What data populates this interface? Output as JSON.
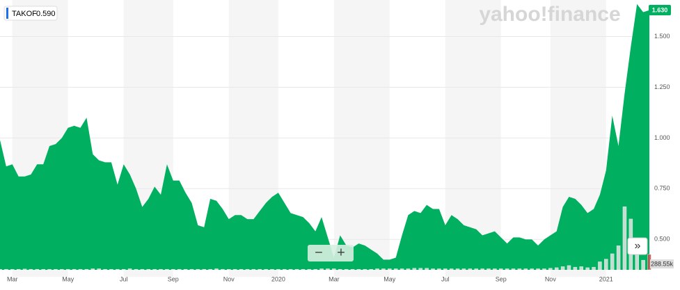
{
  "chart_data": {
    "type": "area",
    "ticker": "TAKOF",
    "quote": "0.590",
    "last_price": "1.630",
    "watermark": "yahoo!finance",
    "volume_label": "288.55k",
    "categories": [
      null,
      null,
      "Mar",
      null,
      null,
      null,
      null,
      null,
      null,
      null,
      null,
      "May",
      null,
      null,
      null,
      null,
      null,
      null,
      null,
      null,
      "Jul",
      null,
      null,
      null,
      null,
      null,
      null,
      null,
      "Sep",
      null,
      null,
      null,
      null,
      null,
      null,
      null,
      null,
      "Nov",
      null,
      null,
      null,
      null,
      null,
      null,
      null,
      "2020",
      null,
      null,
      null,
      null,
      null,
      null,
      null,
      null,
      "Mar",
      null,
      null,
      null,
      null,
      null,
      null,
      null,
      null,
      "May",
      null,
      null,
      null,
      null,
      null,
      null,
      null,
      null,
      "Jul",
      null,
      null,
      null,
      null,
      null,
      null,
      null,
      null,
      "Sep",
      null,
      null,
      null,
      null,
      null,
      null,
      null,
      "Nov",
      null,
      null,
      null,
      null,
      null,
      null,
      null,
      null,
      "2021",
      null,
      null,
      null,
      null,
      null,
      null,
      null
    ],
    "series": [
      {
        "name": "TAKOF",
        "color": "#00b060",
        "values": [
          0.99,
          0.86,
          0.87,
          0.81,
          0.81,
          0.82,
          0.87,
          0.87,
          0.96,
          0.97,
          1.0,
          1.05,
          1.06,
          1.05,
          1.1,
          0.92,
          0.89,
          0.88,
          0.88,
          0.77,
          0.87,
          0.82,
          0.75,
          0.66,
          0.7,
          0.76,
          0.72,
          0.87,
          0.79,
          0.79,
          0.73,
          0.68,
          0.57,
          0.56,
          0.7,
          0.69,
          0.65,
          0.6,
          0.62,
          0.62,
          0.6,
          0.6,
          0.64,
          0.68,
          0.71,
          0.73,
          0.68,
          0.63,
          0.62,
          0.61,
          0.58,
          0.54,
          0.61,
          0.51,
          0.41,
          0.52,
          0.47,
          0.46,
          0.48,
          0.47,
          0.45,
          0.43,
          0.4,
          0.4,
          0.41,
          0.52,
          0.62,
          0.64,
          0.63,
          0.67,
          0.65,
          0.65,
          0.57,
          0.62,
          0.6,
          0.57,
          0.56,
          0.55,
          0.52,
          0.53,
          0.54,
          0.51,
          0.48,
          0.51,
          0.51,
          0.5,
          0.5,
          0.47,
          0.5,
          0.52,
          0.54,
          0.66,
          0.71,
          0.7,
          0.67,
          0.63,
          0.65,
          0.72,
          0.84,
          1.11,
          0.96,
          1.22,
          1.45,
          1.66,
          1.62,
          1.63
        ]
      },
      {
        "name": "Volume",
        "color": "#e6e6e6",
        "values": [
          10,
          10,
          10,
          10,
          15,
          10,
          10,
          10,
          10,
          10,
          10,
          10,
          10,
          10,
          10,
          20,
          20,
          10,
          10,
          10,
          10,
          20,
          10,
          10,
          10,
          10,
          10,
          10,
          10,
          10,
          10,
          10,
          10,
          10,
          10,
          20,
          10,
          10,
          10,
          10,
          10,
          10,
          10,
          10,
          10,
          10,
          10,
          10,
          10,
          10,
          10,
          10,
          20,
          20,
          20,
          10,
          10,
          10,
          10,
          10,
          10,
          20,
          20,
          20,
          20,
          20,
          20,
          30,
          30,
          30,
          20,
          20,
          20,
          20,
          20,
          20,
          20,
          20,
          20,
          20,
          20,
          20,
          20,
          20,
          20,
          20,
          20,
          20,
          20,
          30,
          40,
          60,
          80,
          50,
          60,
          40,
          50,
          150,
          200,
          300,
          450,
          1180,
          950,
          400,
          180,
          288.55
        ]
      }
    ],
    "ylim": [
      0.35,
      1.68
    ],
    "yticks": [
      {
        "value": 0.5,
        "label": "0.500"
      },
      {
        "value": 0.75,
        "label": "0.750"
      },
      {
        "value": 1.0,
        "label": "1.000"
      },
      {
        "value": 1.25,
        "label": "1.250"
      },
      {
        "value": 1.5,
        "label": "1.500"
      }
    ],
    "vlim": [
      0,
      1300
    ],
    "grid": true
  }
}
